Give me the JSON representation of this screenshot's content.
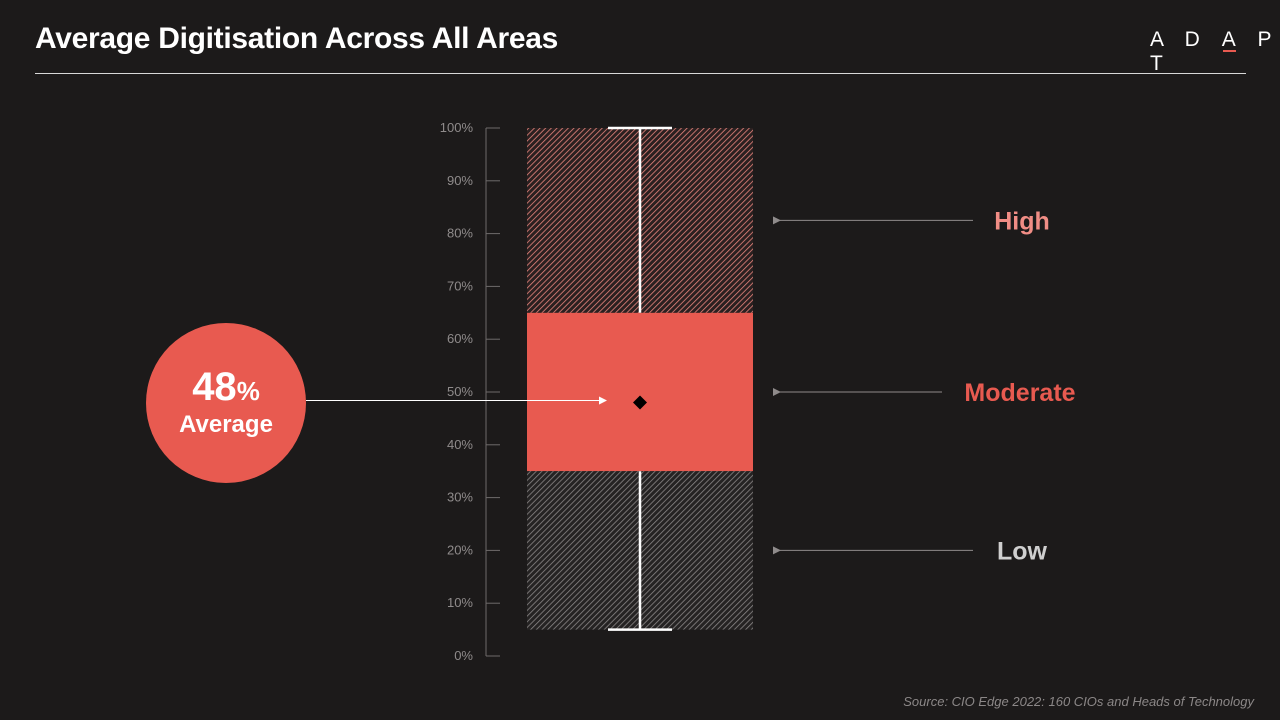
{
  "header": {
    "title": "Average Digitisation Across All Areas",
    "logo_text": "ADAPT",
    "rule_color": "#d8d8d8"
  },
  "chart_data": {
    "type": "boxplot",
    "ylim": [
      0,
      100
    ],
    "y_ticks": [
      "0%",
      "10%",
      "20%",
      "30%",
      "40%",
      "50%",
      "60%",
      "70%",
      "80%",
      "90%",
      "100%"
    ],
    "y_tick_values": [
      0,
      10,
      20,
      30,
      40,
      50,
      60,
      70,
      80,
      90,
      100
    ],
    "whisker_min": 5,
    "whisker_max": 100,
    "bands": [
      {
        "label": "High",
        "from": 65,
        "to": 100,
        "color": "#e8857d",
        "pattern": "hatched",
        "label_color": "#f08d85"
      },
      {
        "label": "Moderate",
        "from": 35,
        "to": 65,
        "color": "#e85a50",
        "pattern": "solid",
        "label_color": "#e85a50"
      },
      {
        "label": "Low",
        "from": 5,
        "to": 35,
        "color": "#8a8686",
        "pattern": "hatched",
        "label_color": "#cfcfcf"
      }
    ],
    "mean": 48,
    "callout": {
      "value": "48",
      "unit": "%",
      "label": "Average",
      "color": "#e85a50"
    }
  },
  "footer": {
    "source": "Source: CIO Edge 2022: 160 CIOs and Heads of Technology"
  },
  "colors": {
    "background": "#1c1a1a",
    "axis": "#6e6a6a",
    "tick_text": "#8f8b8b",
    "whisker": "#ffffff",
    "mean_marker": "#000000",
    "arrow": "#8f8b8b"
  }
}
